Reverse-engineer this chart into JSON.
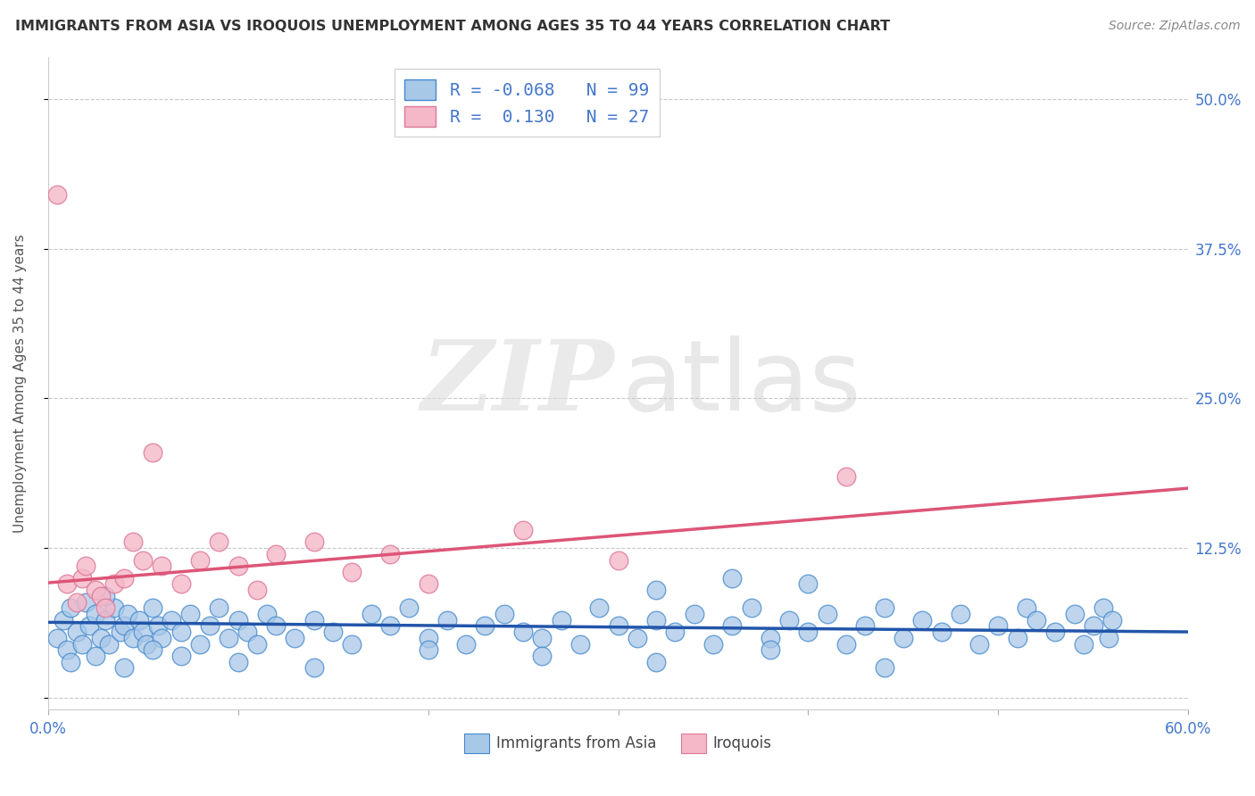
{
  "title": "IMMIGRANTS FROM ASIA VS IROQUOIS UNEMPLOYMENT AMONG AGES 35 TO 44 YEARS CORRELATION CHART",
  "source": "Source: ZipAtlas.com",
  "ylabel": "Unemployment Among Ages 35 to 44 years",
  "xlim": [
    0.0,
    0.6
  ],
  "ylim": [
    -0.01,
    0.535
  ],
  "xticks": [
    0.0,
    0.1,
    0.2,
    0.3,
    0.4,
    0.5,
    0.6
  ],
  "xticklabels": [
    "0.0%",
    "",
    "",
    "",
    "",
    "",
    "60.0%"
  ],
  "ytick_positions": [
    0.0,
    0.125,
    0.25,
    0.375,
    0.5
  ],
  "ytick_labels": [
    "",
    "12.5%",
    "25.0%",
    "37.5%",
    "50.0%"
  ],
  "grid_color": "#c8c8c8",
  "background_color": "#ffffff",
  "blue_color": "#a8c8e8",
  "blue_edge_color": "#4488cc",
  "blue_line_color": "#2255aa",
  "pink_color": "#f5b8c8",
  "pink_edge_color": "#dd7799",
  "pink_line_color": "#dd5577",
  "legend_R_blue": "-0.068",
  "legend_N_blue": "99",
  "legend_R_pink": "0.130",
  "legend_N_pink": "27",
  "label_color": "#4477cc",
  "blue_scatter_x": [
    0.005,
    0.008,
    0.01,
    0.012,
    0.015,
    0.018,
    0.02,
    0.022,
    0.025,
    0.028,
    0.03,
    0.032,
    0.035,
    0.038,
    0.04,
    0.042,
    0.045,
    0.048,
    0.05,
    0.052,
    0.055,
    0.058,
    0.06,
    0.065,
    0.07,
    0.075,
    0.08,
    0.085,
    0.09,
    0.095,
    0.1,
    0.105,
    0.11,
    0.115,
    0.12,
    0.13,
    0.14,
    0.15,
    0.16,
    0.17,
    0.18,
    0.19,
    0.2,
    0.21,
    0.22,
    0.23,
    0.24,
    0.25,
    0.26,
    0.27,
    0.28,
    0.29,
    0.3,
    0.31,
    0.32,
    0.33,
    0.34,
    0.35,
    0.36,
    0.37,
    0.38,
    0.39,
    0.4,
    0.41,
    0.42,
    0.43,
    0.44,
    0.45,
    0.46,
    0.47,
    0.48,
    0.49,
    0.5,
    0.51,
    0.515,
    0.52,
    0.53,
    0.54,
    0.545,
    0.55,
    0.555,
    0.558,
    0.012,
    0.025,
    0.04,
    0.055,
    0.07,
    0.1,
    0.14,
    0.2,
    0.26,
    0.32,
    0.38,
    0.44,
    0.32,
    0.36,
    0.4,
    0.56,
    0.03
  ],
  "blue_scatter_y": [
    0.05,
    0.065,
    0.04,
    0.075,
    0.055,
    0.045,
    0.08,
    0.06,
    0.07,
    0.05,
    0.065,
    0.045,
    0.075,
    0.055,
    0.06,
    0.07,
    0.05,
    0.065,
    0.055,
    0.045,
    0.075,
    0.06,
    0.05,
    0.065,
    0.055,
    0.07,
    0.045,
    0.06,
    0.075,
    0.05,
    0.065,
    0.055,
    0.045,
    0.07,
    0.06,
    0.05,
    0.065,
    0.055,
    0.045,
    0.07,
    0.06,
    0.075,
    0.05,
    0.065,
    0.045,
    0.06,
    0.07,
    0.055,
    0.05,
    0.065,
    0.045,
    0.075,
    0.06,
    0.05,
    0.065,
    0.055,
    0.07,
    0.045,
    0.06,
    0.075,
    0.05,
    0.065,
    0.055,
    0.07,
    0.045,
    0.06,
    0.075,
    0.05,
    0.065,
    0.055,
    0.07,
    0.045,
    0.06,
    0.05,
    0.075,
    0.065,
    0.055,
    0.07,
    0.045,
    0.06,
    0.075,
    0.05,
    0.03,
    0.035,
    0.025,
    0.04,
    0.035,
    0.03,
    0.025,
    0.04,
    0.035,
    0.03,
    0.04,
    0.025,
    0.09,
    0.1,
    0.095,
    0.065,
    0.085
  ],
  "pink_scatter_x": [
    0.005,
    0.01,
    0.015,
    0.018,
    0.02,
    0.025,
    0.028,
    0.03,
    0.035,
    0.04,
    0.045,
    0.05,
    0.055,
    0.06,
    0.07,
    0.08,
    0.09,
    0.1,
    0.11,
    0.12,
    0.14,
    0.16,
    0.18,
    0.2,
    0.25,
    0.3,
    0.42
  ],
  "pink_scatter_y": [
    0.42,
    0.095,
    0.08,
    0.1,
    0.11,
    0.09,
    0.085,
    0.075,
    0.095,
    0.1,
    0.13,
    0.115,
    0.205,
    0.11,
    0.095,
    0.115,
    0.13,
    0.11,
    0.09,
    0.12,
    0.13,
    0.105,
    0.12,
    0.095,
    0.14,
    0.115,
    0.185
  ],
  "blue_trend_x": [
    0.0,
    0.6
  ],
  "blue_trend_y": [
    0.063,
    0.055
  ],
  "pink_trend_x": [
    0.0,
    0.6
  ],
  "pink_trend_y": [
    0.096,
    0.175
  ]
}
